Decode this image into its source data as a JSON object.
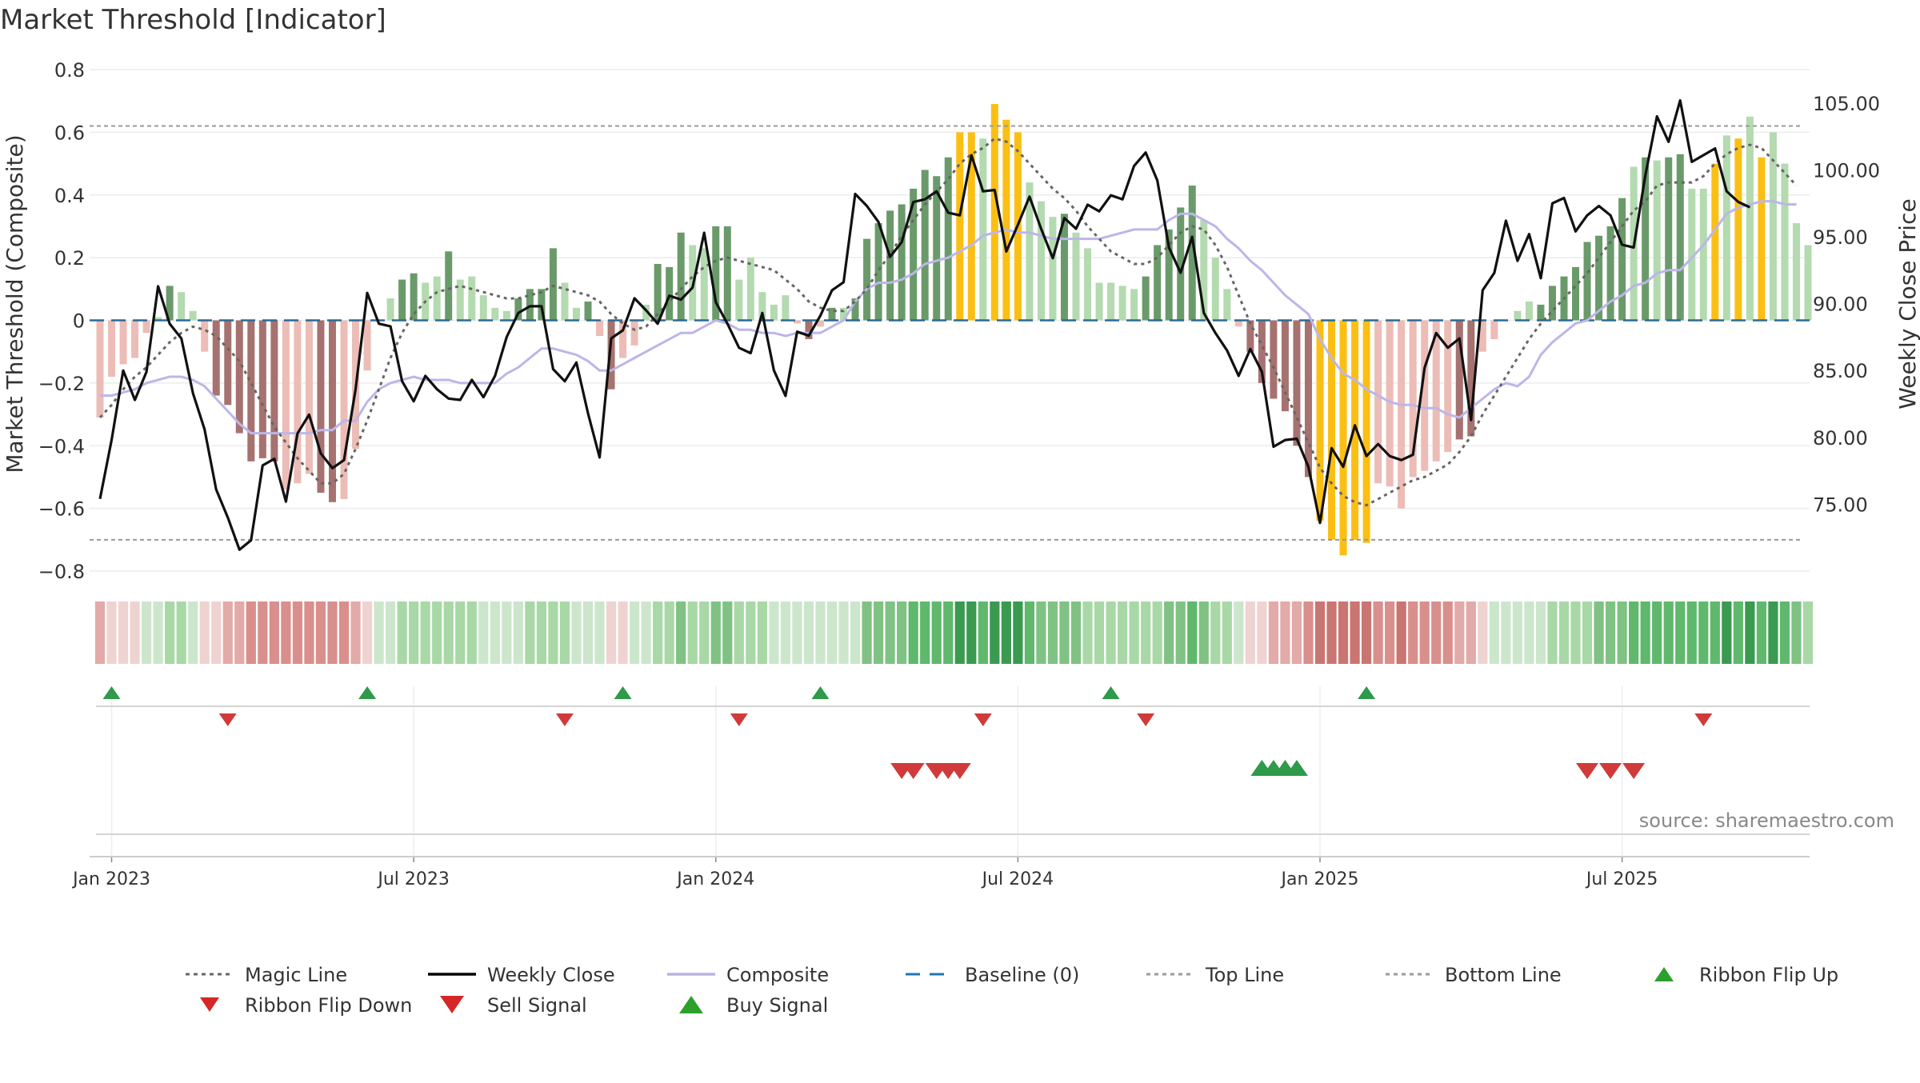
{
  "chart_data": {
    "type": "bar",
    "title": "Market Threshold [Indicator]",
    "ylabel": "Market Threshold (Composite)",
    "y2label": "Weekly Close Price",
    "ylim": [
      -0.8,
      0.8
    ],
    "y2lim": [
      70.0,
      107.5
    ],
    "y_ticks": [
      0.8,
      0.6,
      0.4,
      0.2,
      0,
      -0.2,
      -0.4,
      -0.6,
      -0.8
    ],
    "y_tick_labels": [
      "0.8",
      "0.6",
      "0.4",
      "0.2",
      "0",
      "−0.2",
      "−0.4",
      "−0.6",
      "−0.8"
    ],
    "y2_ticks": [
      105,
      100,
      95,
      90,
      85,
      80,
      75
    ],
    "y2_tick_labels": [
      "105.00",
      "100.00",
      "95.00",
      "90.00",
      "85.00",
      "80.00",
      "75.00"
    ],
    "x_tick_labels": [
      "Jan 2023",
      "Jul 2023",
      "Jan 2024",
      "Jul 2024",
      "Jan 2025",
      "Jul 2025"
    ],
    "x_tick_weeks": [
      1,
      27,
      53,
      79,
      105,
      131
    ],
    "top_line": 0.62,
    "bottom_line": -0.7,
    "baseline": 0,
    "source": "source: sharemaestro.com",
    "legend": [
      {
        "label": "Magic Line",
        "style": "dotted",
        "color": "#666666"
      },
      {
        "label": "Weekly Close",
        "style": "line",
        "color": "#000000"
      },
      {
        "label": "Composite",
        "style": "line",
        "color": "#b8b4e6"
      },
      {
        "label": "Baseline (0)",
        "style": "dashed",
        "color": "#1f77b4"
      },
      {
        "label": "Top Line",
        "style": "dotted",
        "color": "#999999"
      },
      {
        "label": "Bottom Line",
        "style": "dotted",
        "color": "#999999"
      },
      {
        "label": "Ribbon Flip Up",
        "style": "triangle-up",
        "color": "#2ca02c"
      },
      {
        "label": "Ribbon Flip Down",
        "style": "triangle-down",
        "color": "#d62728"
      },
      {
        "label": "Sell Signal",
        "style": "triangle-down-lg",
        "color": "#d62728"
      },
      {
        "label": "Buy Signal",
        "style": "triangle-up-lg",
        "color": "#2ca02c"
      }
    ],
    "bars": [
      -0.31,
      -0.18,
      -0.14,
      -0.12,
      -0.04,
      0.01,
      0.11,
      0.09,
      0.03,
      -0.1,
      -0.24,
      -0.27,
      -0.36,
      -0.45,
      -0.44,
      -0.45,
      -0.54,
      -0.52,
      -0.49,
      -0.55,
      -0.58,
      -0.57,
      -0.41,
      -0.16,
      0.0,
      0.07,
      0.13,
      0.15,
      0.12,
      0.14,
      0.22,
      0.13,
      0.14,
      0.08,
      0.04,
      0.03,
      0.07,
      0.1,
      0.1,
      0.23,
      0.12,
      0.04,
      0.06,
      -0.05,
      -0.22,
      -0.12,
      -0.08,
      0.05,
      0.18,
      0.17,
      0.28,
      0.24,
      0.23,
      0.3,
      0.3,
      0.13,
      0.2,
      0.09,
      0.05,
      0.08,
      -0.01,
      -0.06,
      -0.02,
      0.04,
      0.04,
      0.07,
      0.26,
      0.31,
      0.35,
      0.37,
      0.42,
      0.48,
      0.46,
      0.52,
      0.6,
      0.6,
      0.58,
      0.69,
      0.64,
      0.6,
      0.44,
      0.38,
      0.33,
      0.34,
      0.28,
      0.23,
      0.12,
      0.12,
      0.11,
      0.1,
      0.14,
      0.24,
      0.29,
      0.36,
      0.43,
      0.32,
      0.2,
      0.1,
      -0.02,
      -0.1,
      -0.2,
      -0.25,
      -0.29,
      -0.4,
      -0.5,
      -0.64,
      -0.7,
      -0.75,
      -0.7,
      -0.71,
      -0.52,
      -0.53,
      -0.6,
      -0.5,
      -0.48,
      -0.45,
      -0.42,
      -0.38,
      -0.37,
      -0.1,
      -0.06,
      0.0,
      0.03,
      0.06,
      0.05,
      0.11,
      0.14,
      0.17,
      0.25,
      0.27,
      0.3,
      0.39,
      0.49,
      0.52,
      0.51,
      0.52,
      0.53,
      0.42,
      0.42,
      0.5,
      0.59,
      0.58,
      0.65,
      0.52,
      0.6,
      0.5,
      0.31,
      0.24
    ],
    "bar_states": [
      "lr",
      "lr",
      "lr",
      "lr",
      "lr",
      "lg",
      "dg",
      "lg",
      "lg",
      "lr",
      "dr",
      "dr",
      "dr",
      "dr",
      "dr",
      "dr",
      "lr",
      "lr",
      "lr",
      "dr",
      "dr",
      "lr",
      "lr",
      "lr",
      "lg",
      "lg",
      "dg",
      "dg",
      "lg",
      "lg",
      "dg",
      "lg",
      "lg",
      "lg",
      "lg",
      "lg",
      "dg",
      "dg",
      "dg",
      "dg",
      "lg",
      "lg",
      "dg",
      "lr",
      "dr",
      "lr",
      "lr",
      "lg",
      "dg",
      "dg",
      "dg",
      "lg",
      "lg",
      "dg",
      "dg",
      "lg",
      "lg",
      "lg",
      "lg",
      "lg",
      "lr",
      "dr",
      "lr",
      "dg",
      "lg",
      "dg",
      "dg",
      "dg",
      "dg",
      "dg",
      "dg",
      "dg",
      "dg",
      "dg",
      "y",
      "y",
      "lg",
      "y",
      "y",
      "y",
      "lg",
      "lg",
      "lg",
      "dg",
      "lg",
      "lg",
      "lg",
      "lg",
      "lg",
      "lg",
      "dg",
      "dg",
      "dg",
      "dg",
      "dg",
      "lg",
      "lg",
      "lg",
      "lr",
      "dr",
      "dr",
      "dr",
      "dr",
      "dr",
      "dr",
      "y",
      "y",
      "y",
      "y",
      "y",
      "lr",
      "lr",
      "lr",
      "lr",
      "lr",
      "lr",
      "lr",
      "dr",
      "dr",
      "lr",
      "lr",
      "lr",
      "lg",
      "lg",
      "dg",
      "dg",
      "dg",
      "dg",
      "dg",
      "dg",
      "dg",
      "dg",
      "lg",
      "dg",
      "lg",
      "dg",
      "dg",
      "lg",
      "lg",
      "y",
      "lg",
      "y",
      "lg",
      "y",
      "lg",
      "lg",
      "lg",
      "lg"
    ],
    "close": [
      75.4,
      79.8,
      85.0,
      82.8,
      84.9,
      91.3,
      88.5,
      87.4,
      83.3,
      80.6,
      76.1,
      74.0,
      71.6,
      72.3,
      77.9,
      78.4,
      75.2,
      80.3,
      81.7,
      78.8,
      77.7,
      78.3,
      83.6,
      90.8,
      88.5,
      88.3,
      84.2,
      82.7,
      84.6,
      83.6,
      82.9,
      82.8,
      84.3,
      83.0,
      84.6,
      87.5,
      89.3,
      89.8,
      89.8,
      85.1,
      84.2,
      85.6,
      81.8,
      78.5,
      87.4,
      88.0,
      90.4,
      89.5,
      88.5,
      90.6,
      90.3,
      91.2,
      95.3,
      90.1,
      88.5,
      86.7,
      86.3,
      89.3,
      85.0,
      83.1,
      87.9,
      87.6,
      89.1,
      91.0,
      91.6,
      98.2,
      97.3,
      96.1,
      93.5,
      94.6,
      97.6,
      97.8,
      98.4,
      96.8,
      96.6,
      101.1,
      98.4,
      98.5,
      93.9,
      95.9,
      98.0,
      95.6,
      93.4,
      96.4,
      95.6,
      97.4,
      96.9,
      98.1,
      97.8,
      100.3,
      101.3,
      99.2,
      94.2,
      92.3,
      95.0,
      89.3,
      87.8,
      86.5,
      84.6,
      86.6,
      84.9,
      79.3,
      79.8,
      79.9,
      77.8,
      73.6,
      79.2,
      77.8,
      80.9,
      78.6,
      79.5,
      78.6,
      78.3,
      78.7,
      85.2,
      87.8,
      86.7,
      87.4,
      81.3,
      91.0,
      92.3,
      96.2,
      93.2,
      95.2,
      91.9,
      97.5,
      97.9,
      95.4,
      96.6,
      97.3,
      96.6,
      94.4,
      94.2,
      99.6,
      104.0,
      102.1,
      105.2,
      100.6,
      101.1,
      101.6,
      98.4,
      97.6,
      97.2
    ],
    "magic": [
      -0.31,
      -0.27,
      -0.22,
      -0.18,
      -0.15,
      -0.11,
      -0.07,
      -0.04,
      -0.02,
      -0.03,
      -0.05,
      -0.09,
      -0.13,
      -0.2,
      -0.27,
      -0.34,
      -0.39,
      -0.44,
      -0.48,
      -0.52,
      -0.52,
      -0.49,
      -0.41,
      -0.32,
      -0.22,
      -0.12,
      -0.04,
      0.02,
      0.06,
      0.09,
      0.1,
      0.11,
      0.1,
      0.09,
      0.08,
      0.07,
      0.07,
      0.08,
      0.09,
      0.11,
      0.1,
      0.09,
      0.08,
      0.06,
      0.02,
      -0.01,
      -0.03,
      -0.02,
      0.02,
      0.06,
      0.1,
      0.14,
      0.17,
      0.19,
      0.2,
      0.19,
      0.18,
      0.17,
      0.16,
      0.13,
      0.1,
      0.06,
      0.04,
      0.03,
      0.03,
      0.06,
      0.1,
      0.16,
      0.21,
      0.27,
      0.32,
      0.37,
      0.41,
      0.45,
      0.5,
      0.53,
      0.55,
      0.58,
      0.57,
      0.54,
      0.5,
      0.46,
      0.42,
      0.39,
      0.35,
      0.3,
      0.26,
      0.22,
      0.2,
      0.18,
      0.18,
      0.2,
      0.24,
      0.28,
      0.3,
      0.29,
      0.24,
      0.17,
      0.08,
      -0.01,
      -0.08,
      -0.15,
      -0.23,
      -0.31,
      -0.39,
      -0.47,
      -0.52,
      -0.56,
      -0.58,
      -0.59,
      -0.57,
      -0.55,
      -0.53,
      -0.51,
      -0.5,
      -0.48,
      -0.46,
      -0.42,
      -0.37,
      -0.3,
      -0.24,
      -0.18,
      -0.12,
      -0.06,
      -0.01,
      0.03,
      0.07,
      0.11,
      0.15,
      0.2,
      0.25,
      0.3,
      0.35,
      0.38,
      0.43,
      0.44,
      0.44,
      0.44,
      0.46,
      0.5,
      0.53,
      0.55,
      0.56,
      0.55,
      0.51,
      0.47,
      0.43
    ],
    "composite": [
      -0.24,
      -0.24,
      -0.23,
      -0.22,
      -0.2,
      -0.19,
      -0.18,
      -0.18,
      -0.19,
      -0.21,
      -0.25,
      -0.29,
      -0.33,
      -0.36,
      -0.36,
      -0.36,
      -0.36,
      -0.36,
      -0.36,
      -0.35,
      -0.35,
      -0.32,
      -0.32,
      -0.26,
      -0.22,
      -0.2,
      -0.19,
      -0.18,
      -0.19,
      -0.19,
      -0.19,
      -0.2,
      -0.2,
      -0.2,
      -0.2,
      -0.17,
      -0.15,
      -0.12,
      -0.09,
      -0.09,
      -0.1,
      -0.11,
      -0.13,
      -0.16,
      -0.16,
      -0.14,
      -0.12,
      -0.1,
      -0.08,
      -0.06,
      -0.04,
      -0.04,
      -0.02,
      0.0,
      -0.01,
      -0.03,
      -0.03,
      -0.04,
      -0.04,
      -0.05,
      -0.04,
      -0.04,
      -0.04,
      -0.02,
      0.0,
      0.06,
      0.1,
      0.12,
      0.12,
      0.13,
      0.15,
      0.18,
      0.19,
      0.2,
      0.22,
      0.24,
      0.27,
      0.28,
      0.29,
      0.28,
      0.28,
      0.27,
      0.26,
      0.26,
      0.26,
      0.26,
      0.26,
      0.27,
      0.28,
      0.29,
      0.29,
      0.29,
      0.32,
      0.34,
      0.34,
      0.32,
      0.3,
      0.26,
      0.23,
      0.19,
      0.16,
      0.12,
      0.08,
      0.05,
      0.02,
      -0.06,
      -0.12,
      -0.17,
      -0.19,
      -0.22,
      -0.24,
      -0.26,
      -0.27,
      -0.27,
      -0.28,
      -0.28,
      -0.3,
      -0.31,
      -0.28,
      -0.25,
      -0.22,
      -0.2,
      -0.21,
      -0.18,
      -0.11,
      -0.07,
      -0.04,
      -0.01,
      0.0,
      0.03,
      0.06,
      0.08,
      0.11,
      0.12,
      0.15,
      0.16,
      0.16,
      0.2,
      0.24,
      0.29,
      0.34,
      0.36,
      0.37,
      0.38,
      0.38,
      0.37,
      0.37
    ]
  },
  "signals": {
    "ribbon_flip_up": [
      1,
      23,
      45,
      62,
      87,
      109
    ],
    "ribbon_flip_down": [
      11,
      40,
      55,
      76,
      90,
      138
    ],
    "sell_signal": [
      69,
      70,
      72,
      73,
      74,
      128,
      130,
      132
    ],
    "buy_signal": [
      100,
      101,
      102,
      103
    ]
  },
  "colors": {
    "dark_green": "#6a9a6a",
    "light_green": "#b4dab0",
    "dark_red": "#a67270",
    "light_red": "#ecbcb6",
    "yellow": "#fbbf14",
    "close_line": "#111111",
    "composite_line": "#bcb6e8",
    "magic_line": "#666666",
    "baseline": "#2b6a96",
    "threshold_line": "#999999",
    "up_marker": "#2e9a4a",
    "down_marker": "#d03a3a",
    "ribbon": [
      "#3a9a50",
      "#5fb86c",
      "#7fc283",
      "#a8d8a6",
      "#cce6cc",
      "#efd3d1",
      "#e2aaa8",
      "#d98f8c",
      "#c97572"
    ]
  }
}
